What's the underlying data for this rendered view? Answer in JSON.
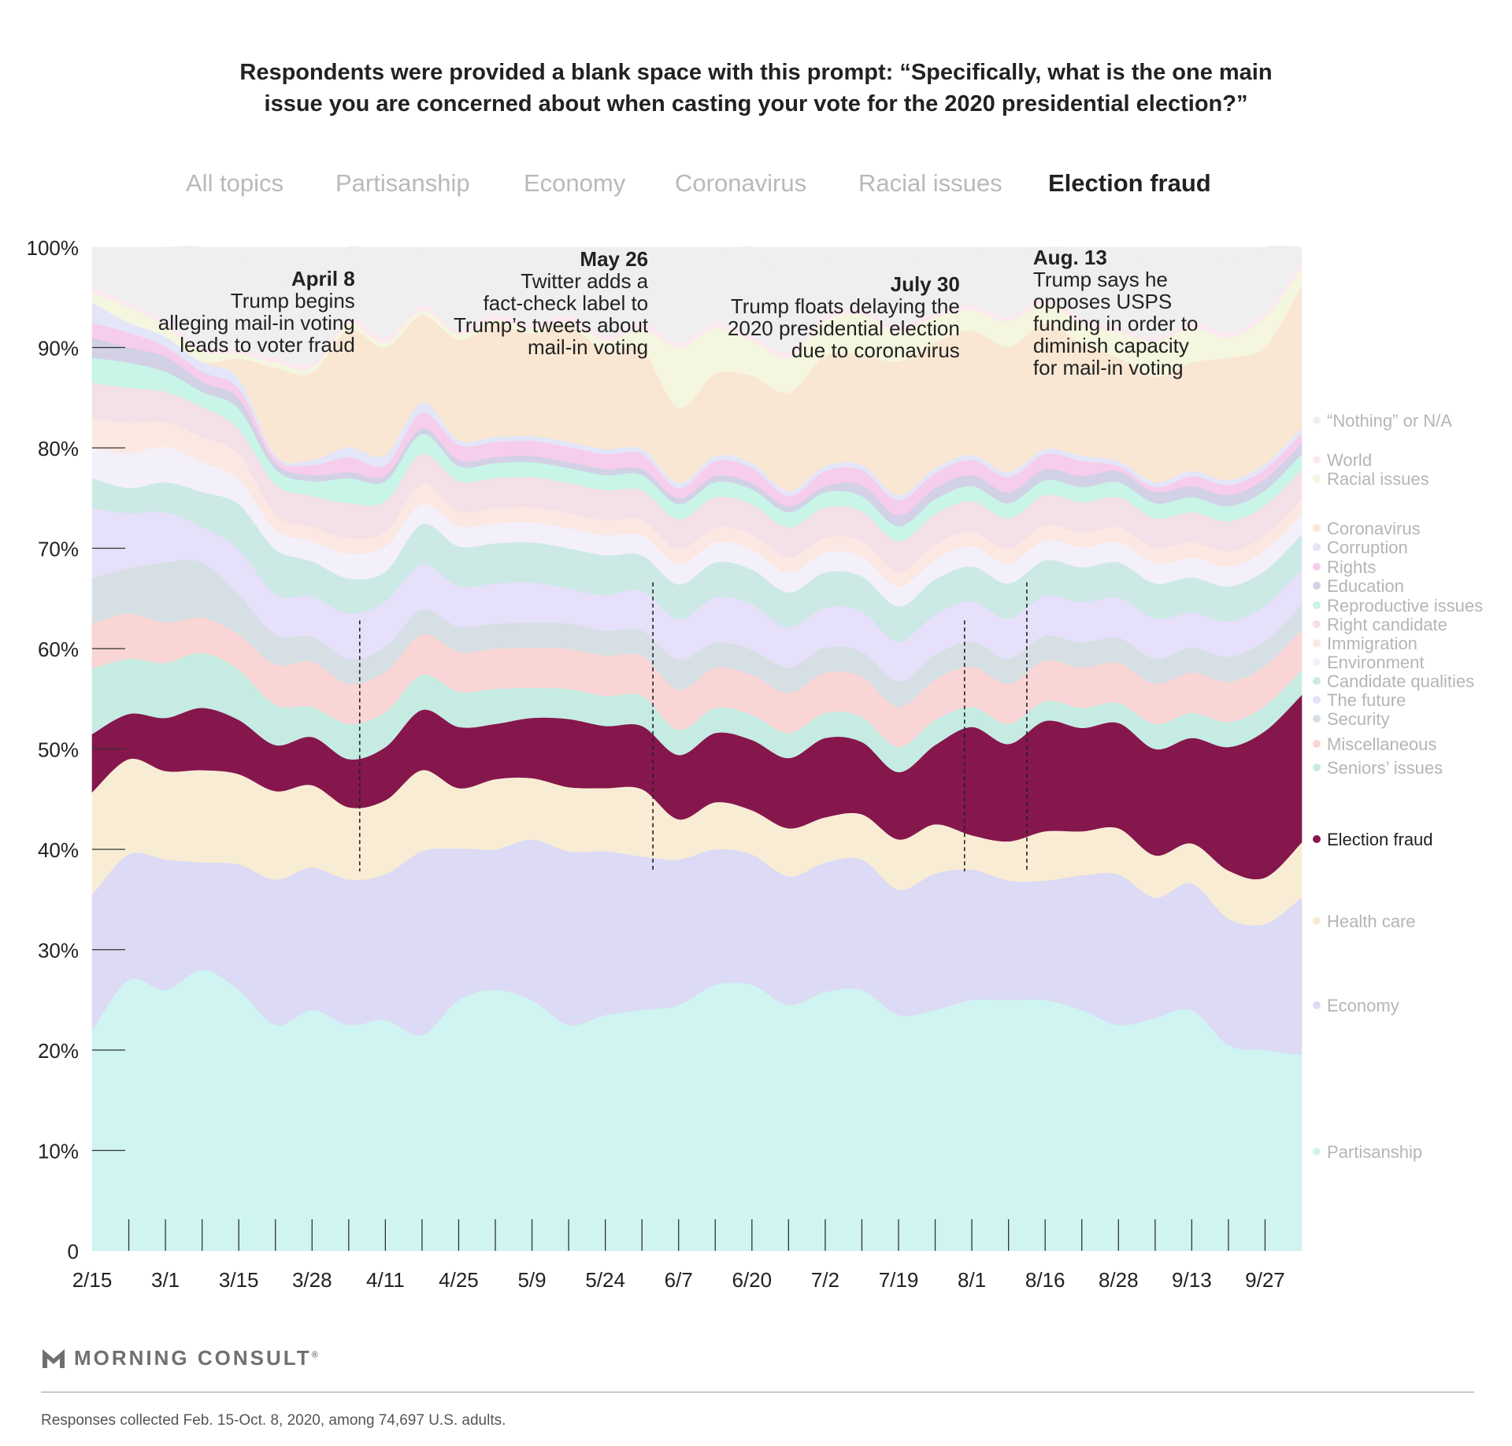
{
  "title": {
    "line1": "Respondents were provided a blank space with this prompt: “Specifically, what is the one main",
    "line2": "issue you are concerned about when casting your vote for the 2020 presidential election?”"
  },
  "tabs": [
    {
      "label": "All topics",
      "active": false
    },
    {
      "label": "Partisanship",
      "active": false
    },
    {
      "label": "Economy",
      "active": false
    },
    {
      "label": "Coronavirus",
      "active": false
    },
    {
      "label": "Racial issues",
      "active": false
    },
    {
      "label": "Election fraud",
      "active": true
    }
  ],
  "chart_data": {
    "type": "area",
    "stacked": true,
    "ylim": [
      0,
      100
    ],
    "yticks": [
      "0",
      "10%",
      "20%",
      "30%",
      "40%",
      "50%",
      "60%",
      "70%",
      "80%",
      "90%",
      "100%"
    ],
    "x": [
      "2/15",
      "2/22",
      "3/1",
      "3/8",
      "3/15",
      "3/22",
      "3/28",
      "4/4",
      "4/11",
      "4/18",
      "4/25",
      "5/2",
      "5/9",
      "5/16",
      "5/24",
      "5/31",
      "6/7",
      "6/14",
      "6/20",
      "6/27",
      "7/2",
      "7/12",
      "7/19",
      "7/26",
      "8/1",
      "8/9",
      "8/16",
      "8/22",
      "8/28",
      "9/6",
      "9/13",
      "9/20",
      "9/27",
      "10/4"
    ],
    "xticklabels": [
      "2/15",
      "3/1",
      "3/15",
      "3/28",
      "4/11",
      "4/25",
      "5/9",
      "5/24",
      "6/7",
      "6/20",
      "7/2",
      "7/19",
      "8/1",
      "8/16",
      "8/28",
      "9/13",
      "9/27"
    ],
    "series": [
      {
        "name": "Partisanship",
        "color": "#cff4f1",
        "values": [
          22,
          27,
          26,
          28,
          26,
          22.5,
          24,
          22.5,
          23,
          21.5,
          25,
          26,
          25,
          22.5,
          23.5,
          24,
          24.5,
          26.5,
          26.5,
          24.5,
          25.8,
          26,
          23.5,
          24,
          25,
          25,
          25,
          24,
          22.5,
          23.2,
          24,
          20.5,
          20,
          19.5
        ]
      },
      {
        "name": "Economy",
        "color": "#dcdaf4",
        "values": [
          13.5,
          12.5,
          13,
          10.7,
          12.5,
          14.5,
          14.2,
          14.5,
          14.5,
          18.3,
          15.1,
          14,
          16,
          17.3,
          16.3,
          15.3,
          14.5,
          13.5,
          13,
          12.8,
          12.9,
          13,
          12.5,
          13.6,
          13,
          11.9,
          11.9,
          13.4,
          15,
          12,
          12.6,
          12.6,
          12.6,
          15.7
        ]
      },
      {
        "name": "Health care",
        "color": "#f8edd4",
        "values": [
          10.2,
          9.5,
          8.8,
          9.2,
          9,
          8.8,
          8.2,
          7.2,
          7.4,
          8.1,
          6,
          7,
          6.1,
          6.4,
          6.3,
          6.7,
          4,
          4.7,
          4.4,
          4.8,
          4.5,
          4.5,
          5,
          4.9,
          3.4,
          3.9,
          4.9,
          4.4,
          4.6,
          4.2,
          4,
          4.8,
          4.6,
          5.5
        ]
      },
      {
        "name": "Election fraud",
        "color": "#85174d",
        "values": [
          5.8,
          4.5,
          5.3,
          6.2,
          5.4,
          4.6,
          4.8,
          4.8,
          5.3,
          6,
          6.1,
          5.5,
          6,
          6.8,
          6.2,
          6.3,
          6.4,
          6.9,
          7,
          7,
          7.9,
          7.2,
          6.7,
          7.9,
          10.8,
          9.7,
          11,
          10.3,
          10.5,
          10.6,
          10.5,
          12.3,
          14.6,
          14.7
        ]
      },
      {
        "name": "Seniors’ issues",
        "color": "#c6ebe3",
        "values": [
          6.5,
          5.5,
          5.5,
          5.5,
          5,
          4,
          3,
          3.5,
          3.5,
          3.5,
          3.5,
          3.5,
          3,
          3,
          3,
          3,
          2.5,
          2.5,
          2.5,
          2.5,
          2.5,
          2.5,
          2.5,
          2.5,
          2,
          2,
          2,
          2,
          2,
          2.5,
          2.5,
          2.5,
          2.5,
          2.5
        ]
      },
      {
        "name": "Miscellaneous",
        "color": "#f9d5d5",
        "values": [
          4.5,
          4.5,
          4,
          3.5,
          3.5,
          4,
          4.5,
          4,
          4,
          4,
          4,
          4,
          4,
          4,
          4,
          4,
          4,
          4,
          4,
          4,
          4,
          4,
          4,
          4,
          4,
          4,
          4,
          4,
          4,
          4,
          4,
          4,
          4,
          4
        ]
      },
      {
        "name": "Security",
        "color": "#d6dfe4",
        "values": [
          4.5,
          4.5,
          6,
          5.5,
          4,
          3,
          2.5,
          2.5,
          2.5,
          2.5,
          2.5,
          2.5,
          2.5,
          2.5,
          2.5,
          2.5,
          3,
          2.5,
          2.5,
          2.5,
          2.5,
          2.5,
          2.5,
          2.5,
          2.5,
          2.5,
          2.5,
          2.5,
          2.5,
          2.5,
          2.5,
          2.5,
          2.5,
          2.5
        ]
      },
      {
        "name": "The future",
        "color": "#e6e0fa",
        "values": [
          7,
          5.5,
          5,
          3.5,
          4.5,
          4,
          4,
          4.5,
          4.5,
          4.5,
          4,
          4,
          4,
          3.5,
          3.5,
          4,
          4,
          4.5,
          4.5,
          4,
          4,
          4,
          4,
          4,
          4,
          4,
          4,
          4,
          4,
          4,
          3.5,
          3.5,
          3.5,
          3.5
        ]
      },
      {
        "name": "Candidate qualities",
        "color": "#cde9e6",
        "values": [
          3,
          2.5,
          3,
          3.5,
          4.5,
          4.5,
          3.5,
          3.5,
          3,
          4,
          4,
          4,
          4,
          4,
          4,
          3.5,
          3.5,
          3.5,
          3.5,
          3.5,
          3.5,
          3.5,
          3.5,
          3.5,
          3.5,
          3.5,
          3.5,
          3.5,
          3.5,
          3.5,
          3.5,
          3.5,
          3.5,
          3.5
        ]
      },
      {
        "name": "Environment",
        "color": "#f3f0fa",
        "values": [
          3,
          3.5,
          3.5,
          3,
          2.5,
          2,
          2,
          2.5,
          2.5,
          2,
          2,
          2,
          2,
          2,
          2,
          2,
          2,
          2,
          2,
          2,
          2,
          2,
          2,
          2,
          2,
          2,
          2,
          2,
          2,
          2,
          2,
          2,
          2,
          2
        ]
      },
      {
        "name": "Immigration",
        "color": "#fce8e2",
        "values": [
          3,
          3,
          2.5,
          2.5,
          2.5,
          1.5,
          1.5,
          1.5,
          1.5,
          2,
          1.5,
          1.5,
          1.5,
          1.5,
          1.5,
          1.5,
          1.5,
          1.5,
          1.5,
          1.5,
          1.5,
          1.5,
          1.5,
          1.5,
          1.5,
          1.5,
          1.5,
          1.5,
          1.5,
          1.5,
          1.5,
          1.5,
          1.5,
          1.5
        ]
      },
      {
        "name": "Right candidate",
        "color": "#f3e0e8",
        "values": [
          3.5,
          3.5,
          3,
          3,
          2.5,
          3,
          3,
          3.5,
          3,
          3,
          3,
          3,
          3,
          3,
          3,
          3,
          3,
          3,
          3,
          3,
          3,
          3,
          3,
          3,
          3,
          3,
          3,
          3,
          3,
          3,
          3,
          3,
          3,
          3
        ]
      },
      {
        "name": "Reproductive issues",
        "color": "#c9f4e8",
        "values": [
          2.5,
          2.5,
          2,
          1.5,
          2,
          1.5,
          1.5,
          2.5,
          2,
          2,
          1.5,
          1.5,
          1.5,
          1.5,
          1.5,
          1.5,
          1.5,
          1.5,
          1.5,
          1.5,
          1.5,
          1.5,
          1.5,
          1.5,
          1.5,
          1.5,
          1.5,
          1.5,
          1.5,
          1.5,
          1.5,
          1.5,
          1.5,
          1.5
        ]
      },
      {
        "name": "Education",
        "color": "#d2d1e6",
        "values": [
          2,
          1.5,
          1.5,
          1,
          1,
          0.6,
          0.6,
          0.6,
          0.6,
          0.6,
          0.6,
          0.6,
          0.6,
          0.6,
          0.6,
          0.6,
          0.6,
          0.6,
          0.6,
          0.6,
          0.6,
          1.1,
          1.1,
          1.1,
          1.1,
          1.1,
          1.1,
          1.1,
          1.1,
          1.1,
          1.1,
          1.1,
          1.1,
          1.1
        ]
      },
      {
        "name": "Rights",
        "color": "#f7cdec",
        "values": [
          1.5,
          1.5,
          1,
          1,
          1,
          0.5,
          1,
          1.5,
          1,
          1.5,
          1.5,
          1.5,
          1.5,
          1.5,
          1.5,
          1.5,
          1,
          1.5,
          1.5,
          1,
          1.5,
          1.5,
          1.5,
          1.5,
          1.5,
          1.5,
          1.5,
          1.5,
          0.5,
          0.5,
          1,
          1,
          1,
          1
        ]
      },
      {
        "name": "Corruption",
        "color": "#e3e6f8",
        "values": [
          2,
          1,
          1,
          1,
          1,
          0.3,
          0.5,
          1,
          1,
          1,
          0.5,
          0.5,
          0.5,
          0.5,
          0.5,
          0.5,
          0.5,
          0.5,
          0.5,
          0.5,
          0.5,
          0.5,
          0.5,
          0.5,
          0.5,
          0.5,
          0.5,
          0.5,
          0.5,
          0.5,
          0.5,
          0.5,
          0.5,
          0.5
        ]
      },
      {
        "name": "Coronavirus",
        "color": "#f9e7d3",
        "values": [
          0,
          0,
          0,
          0,
          2,
          8.7,
          8.7,
          11.7,
          10.7,
          8.7,
          10,
          11.2,
          10.2,
          11.5,
          9.8,
          9.9,
          7.5,
          8.2,
          8.7,
          9.8,
          11,
          11,
          13.3,
          12.5,
          12.4,
          12.5,
          12.5,
          11.2,
          10.3,
          10.5,
          10.8,
          12.2,
          11.7,
          14.3
        ]
      },
      {
        "name": "Racial issues",
        "color": "#f5f6df",
        "values": [
          1,
          1.5,
          1,
          1,
          0.5,
          0.5,
          0.5,
          0.5,
          0.5,
          0.5,
          0.5,
          0.5,
          0.5,
          0.5,
          1,
          2,
          6,
          4.5,
          3.5,
          3.5,
          3.5,
          4,
          3,
          2.5,
          2,
          2.5,
          2,
          2,
          2.5,
          3.5,
          3.5,
          2,
          3,
          1.5
        ]
      },
      {
        "name": "World",
        "color": "#fce9ef",
        "values": [
          0.5,
          0.5,
          0.5,
          0.5,
          0.5,
          0.5,
          0.5,
          0.5,
          0.5,
          0.5,
          0.5,
          0.5,
          0.5,
          0.5,
          0.5,
          0.5,
          0.5,
          0.5,
          0.5,
          0.5,
          0.5,
          0.5,
          0.5,
          0.5,
          0.5,
          0.5,
          0.5,
          0.5,
          0.5,
          0.5,
          0.5,
          0.5,
          0.5,
          0.5
        ]
      },
      {
        "name": "“Nothing” or N/A",
        "color": "#efefef",
        "values": [
          8.7,
          8.5,
          8.6,
          10.5,
          8.6,
          7.8,
          7.3,
          7.2,
          8,
          5.3,
          7.6,
          7.2,
          6.9,
          6.4,
          7.8,
          6.8,
          7.5,
          6.7,
          8.9,
          7.7,
          5.9,
          5.6,
          5.8,
          5.9,
          7.4,
          6.3,
          6.6,
          6.9,
          7,
          7.5,
          7,
          6.8,
          7.8,
          6.4
        ]
      }
    ],
    "annotations": [
      {
        "date": "April 8",
        "text": [
          "Trump begins",
          "alleging mail-in voting",
          "leads to voter fraud"
        ]
      },
      {
        "date": "May 26",
        "text": [
          "Twitter adds a",
          "fact-check label to",
          "Trump’s tweets about",
          "mail-in voting"
        ]
      },
      {
        "date": "July 30",
        "text": [
          "Trump floats delaying the",
          "2020 presidential election",
          "due to coronavirus"
        ]
      },
      {
        "date": "Aug. 13",
        "text": [
          "Trump says he",
          "opposes USPS",
          "funding in order to",
          "diminish capacity",
          "for mail-in voting"
        ]
      }
    ],
    "legend_placement": "right"
  },
  "branding": {
    "name": "MORNING CONSULT",
    "mark": "®"
  },
  "footnote": "Responses collected Feb. 15-Oct. 8, 2020, among 74,697 U.S. adults."
}
